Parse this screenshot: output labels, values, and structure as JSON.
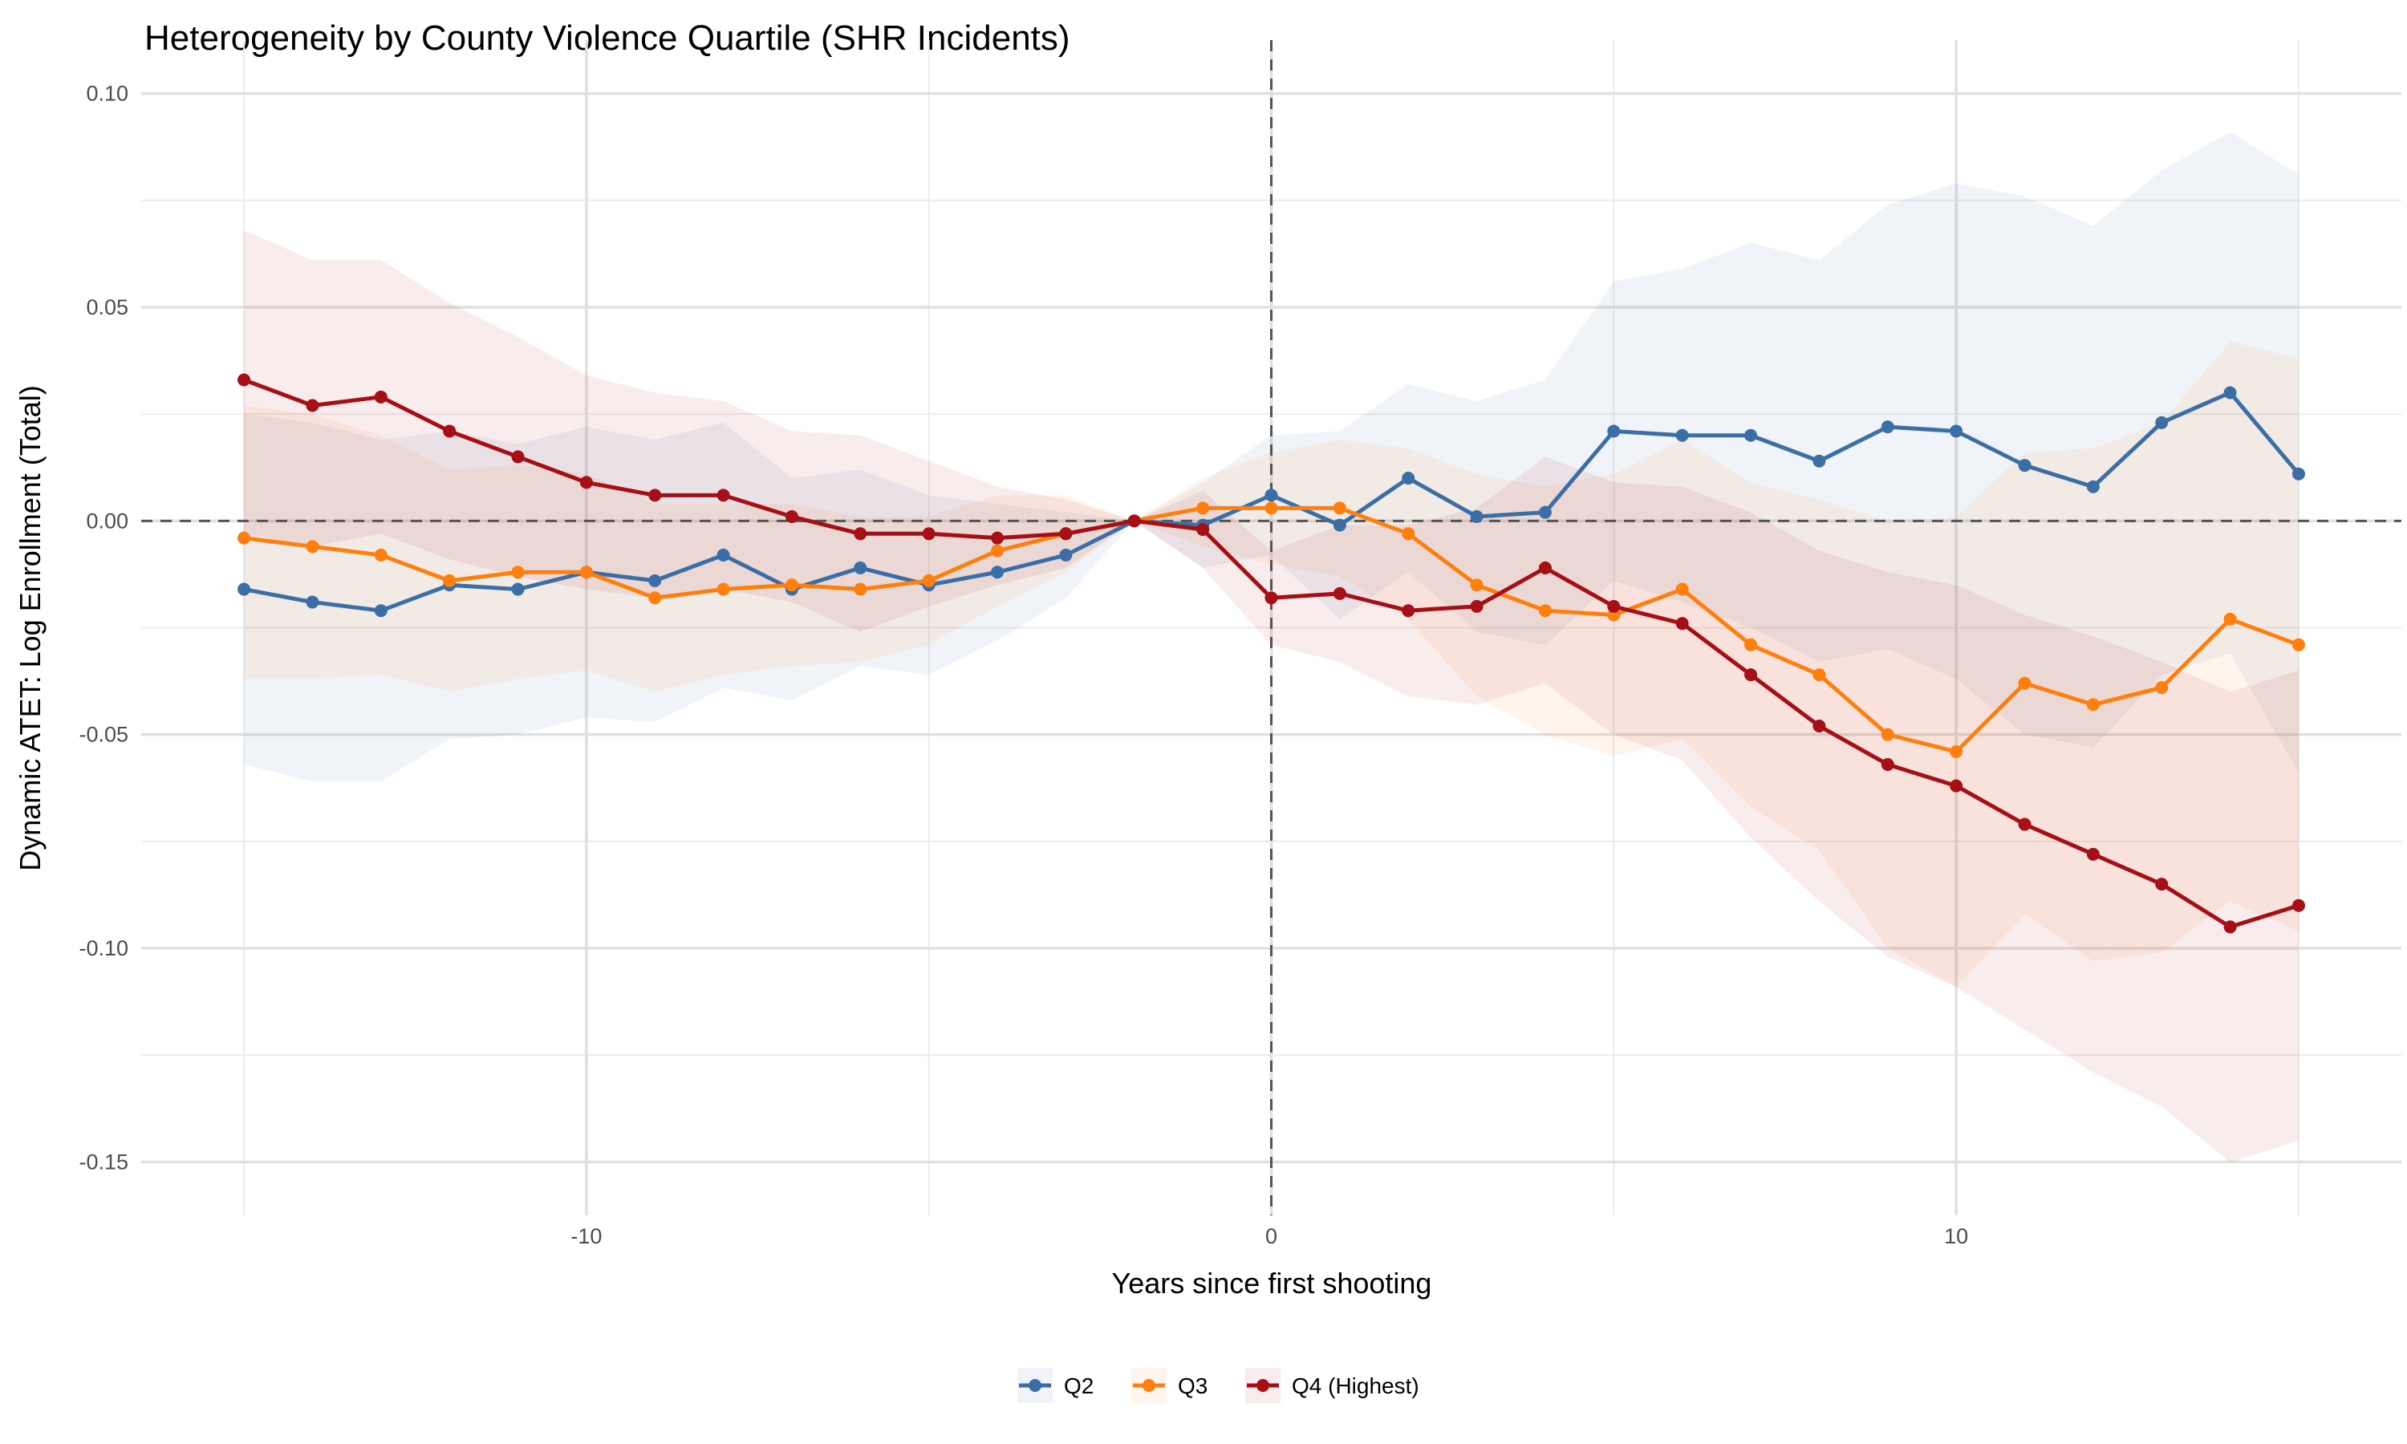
{
  "chart_data": {
    "type": "line",
    "title": "Heterogeneity by County Violence Quartile (SHR Incidents)",
    "xlabel": "Years since first shooting",
    "ylabel": "Dynamic ATET: Log Enrollment (Total)",
    "xlim": [
      -16.5,
      16.5
    ],
    "ylim": [
      -0.1625,
      0.1125
    ],
    "x_ticks": [
      -10,
      0,
      10
    ],
    "x_tick_labels": [
      "-10",
      "0",
      "10"
    ],
    "y_ticks": [
      0.1,
      0.05,
      0.0,
      -0.05,
      -0.1,
      -0.15
    ],
    "y_tick_labels": [
      "0.10",
      "0.05",
      "0.00",
      "-0.05",
      "-0.10",
      "-0.15"
    ],
    "grid": true,
    "reference_lines": {
      "x": 0,
      "y": 0,
      "style": "dashed"
    },
    "legend_position": "bottom",
    "x": [
      -15,
      -14,
      -13,
      -12,
      -11,
      -10,
      -9,
      -8,
      -7,
      -6,
      -5,
      -4,
      -3,
      -2,
      -1,
      0,
      1,
      2,
      3,
      4,
      5,
      6,
      7,
      8,
      9,
      10,
      11,
      12,
      13,
      14,
      15
    ],
    "series": [
      {
        "name": "Q2",
        "color": "#3a6ea5",
        "values": [
          -0.016,
          -0.019,
          -0.021,
          -0.015,
          -0.016,
          -0.012,
          -0.014,
          -0.008,
          -0.016,
          -0.011,
          -0.015,
          -0.012,
          -0.008,
          0,
          -0.001,
          0.006,
          -0.001,
          0.01,
          0.001,
          0.002,
          0.021,
          0.02,
          0.02,
          0.014,
          0.022,
          0.021,
          0.013,
          0.008,
          0.023,
          0.03,
          0.011
        ],
        "lower": [
          -0.057,
          -0.061,
          -0.061,
          -0.051,
          -0.05,
          -0.046,
          -0.047,
          -0.039,
          -0.042,
          -0.034,
          -0.036,
          -0.028,
          -0.018,
          0,
          -0.011,
          -0.008,
          -0.023,
          -0.012,
          -0.026,
          -0.029,
          -0.014,
          -0.019,
          -0.025,
          -0.033,
          -0.03,
          -0.037,
          -0.05,
          -0.053,
          -0.036,
          -0.031,
          -0.059
        ],
        "upper": [
          0.025,
          0.023,
          0.019,
          0.021,
          0.018,
          0.022,
          0.019,
          0.023,
          0.01,
          0.012,
          0.006,
          0.004,
          0.002,
          0,
          0.009,
          0.02,
          0.021,
          0.032,
          0.028,
          0.033,
          0.056,
          0.059,
          0.065,
          0.061,
          0.074,
          0.079,
          0.076,
          0.069,
          0.082,
          0.091,
          0.081
        ]
      },
      {
        "name": "Q3",
        "color": "#ff7f0e",
        "values": [
          -0.004,
          -0.006,
          -0.008,
          -0.014,
          -0.012,
          -0.012,
          -0.018,
          -0.016,
          -0.015,
          -0.016,
          -0.014,
          -0.007,
          -0.003,
          0,
          0.003,
          0.003,
          0.003,
          -0.003,
          -0.015,
          -0.021,
          -0.022,
          -0.016,
          -0.029,
          -0.036,
          -0.05,
          -0.054,
          -0.038,
          -0.043,
          -0.039,
          -0.023,
          -0.029
        ],
        "lower": [
          -0.037,
          -0.037,
          -0.036,
          -0.04,
          -0.037,
          -0.035,
          -0.04,
          -0.036,
          -0.034,
          -0.033,
          -0.029,
          -0.02,
          -0.012,
          0,
          -0.006,
          -0.01,
          -0.013,
          -0.023,
          -0.041,
          -0.05,
          -0.055,
          -0.051,
          -0.067,
          -0.077,
          -0.1,
          -0.109,
          -0.092,
          -0.103,
          -0.101,
          -0.089,
          -0.096
        ],
        "upper": [
          0.027,
          0.025,
          0.02,
          0.012,
          0.013,
          0.011,
          0.004,
          0.004,
          0.004,
          0.001,
          0.001,
          0.006,
          0.006,
          0,
          0.01,
          0.016,
          0.019,
          0.017,
          0.011,
          0.008,
          0.011,
          0.019,
          0.009,
          0.005,
          0.0,
          0.001,
          0.016,
          0.017,
          0.023,
          0.042,
          0.038
        ]
      },
      {
        "name": "Q4 (Highest)",
        "color": "#a50f15",
        "values": [
          0.033,
          0.027,
          0.029,
          0.021,
          0.015,
          0.009,
          0.006,
          0.006,
          0.001,
          -0.003,
          -0.003,
          -0.004,
          -0.003,
          0,
          -0.002,
          -0.018,
          -0.017,
          -0.021,
          -0.02,
          -0.011,
          -0.02,
          -0.024,
          -0.036,
          -0.048,
          -0.057,
          -0.062,
          -0.071,
          -0.078,
          -0.085,
          -0.095,
          -0.09
        ],
        "lower": [
          -0.003,
          -0.006,
          -0.003,
          -0.009,
          -0.013,
          -0.016,
          -0.018,
          -0.016,
          -0.019,
          -0.026,
          -0.02,
          -0.015,
          -0.011,
          0,
          -0.011,
          -0.029,
          -0.033,
          -0.041,
          -0.043,
          -0.038,
          -0.05,
          -0.056,
          -0.074,
          -0.089,
          -0.102,
          -0.109,
          -0.119,
          -0.129,
          -0.137,
          -0.15,
          -0.145
        ],
        "upper": [
          0.068,
          0.061,
          0.061,
          0.051,
          0.043,
          0.034,
          0.03,
          0.028,
          0.021,
          0.02,
          0.014,
          0.008,
          0.005,
          0,
          0.007,
          -0.007,
          -0.001,
          -0.001,
          0.003,
          0.015,
          0.009,
          0.008,
          0.002,
          -0.007,
          -0.012,
          -0.015,
          -0.022,
          -0.027,
          -0.033,
          -0.04,
          -0.035
        ]
      }
    ]
  }
}
